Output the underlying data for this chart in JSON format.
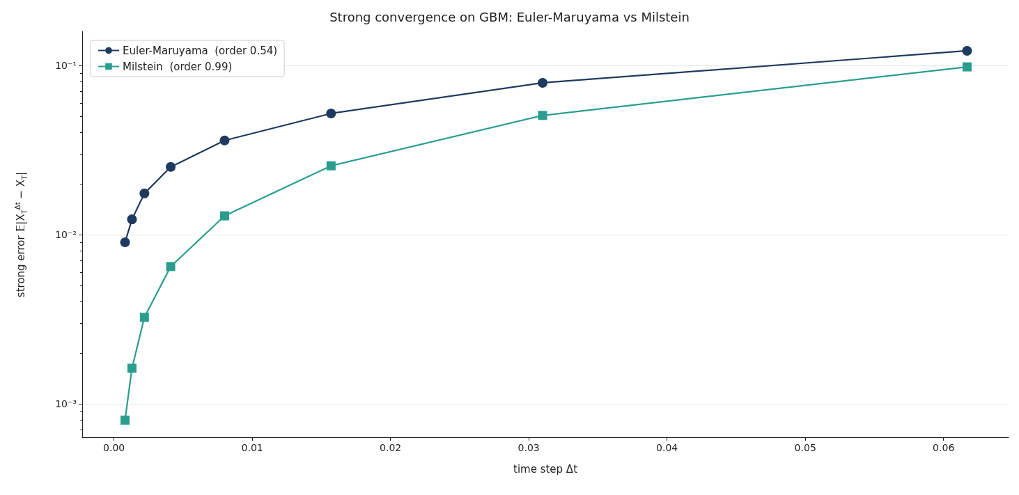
{
  "chart_data": {
    "type": "line",
    "title": "Strong convergence on GBM: Euler-Maruyama vs Milstein",
    "xlabel": "time step Δt",
    "ylabel": "strong error  𝔼|X$_{T}$$^{Δt}$ − X$_{T}$|",
    "x": [
      0.0617,
      0.031,
      0.0157,
      0.008,
      0.0041,
      0.0022,
      0.0013,
      0.0008
    ],
    "series": [
      {
        "name": "Euler-Maruyama  (order 0.54)",
        "color": "#1f3a5f",
        "marker": "circle",
        "values": [
          0.122,
          0.0789,
          0.052,
          0.036,
          0.0251,
          0.0175,
          0.0123,
          0.009
        ]
      },
      {
        "name": "Milstein  (order 0.99)",
        "color": "#2a9d8f",
        "marker": "square",
        "values": [
          0.098,
          0.0506,
          0.0255,
          0.0129,
          0.00647,
          0.00324,
          0.00162,
          0.0008
        ]
      }
    ],
    "log": "y",
    "xlim": [
      -0.0023,
      0.0647
    ],
    "xticks": [
      {
        "value": 0,
        "label": "0.00"
      },
      0.01,
      0.02,
      0.03,
      0.04,
      0.05,
      0.06
    ],
    "ylim": [
      0.000634,
      0.159
    ],
    "yticks": [
      {
        "value": 0.001,
        "label": "10⁻³"
      },
      {
        "value": 0.01,
        "label": "10⁻²"
      },
      {
        "value": 0.1,
        "label": "10⁻¹"
      }
    ],
    "grid": "y",
    "legend": "top left",
    "line_style": "solid"
  }
}
